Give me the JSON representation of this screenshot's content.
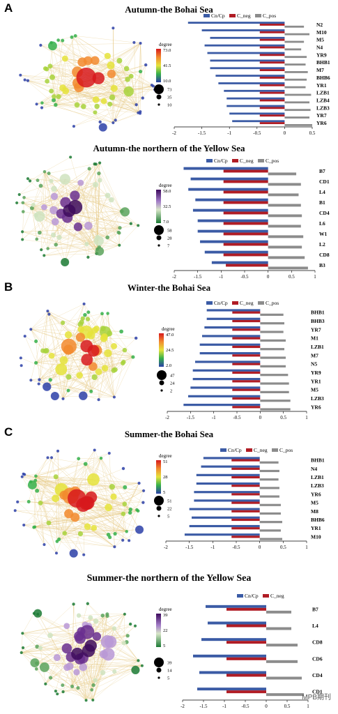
{
  "panel_letters": [
    "A",
    "B",
    "C"
  ],
  "sections": [
    {
      "title": "Autumn-the Bohai Sea",
      "degree_label": "degree",
      "color_ticks": [
        "73.0",
        "41.5",
        "10.0"
      ],
      "size_ticks": [
        "73",
        "35",
        "10"
      ],
      "gradient": "rainbow"
    },
    {
      "title": "Autumn-the northern of the Yellow Sea",
      "degree_label": "degree",
      "color_ticks": [
        "58.0",
        "32.5",
        "7.0"
      ],
      "size_ticks": [
        "58",
        "28",
        "7"
      ],
      "gradient": "purplegreen"
    },
    {
      "title": "Winter-the Bohai Sea",
      "degree_label": "degree",
      "color_ticks": [
        "47.0",
        "24.5",
        "2.0"
      ],
      "size_ticks": [
        "47",
        "24",
        "2"
      ],
      "gradient": "rainbow"
    },
    {
      "title": "Summer-the Bohai Sea",
      "degree_label": "degree",
      "color_ticks": [
        "51",
        "28",
        "5"
      ],
      "size_ticks": [
        "51",
        "22",
        "5"
      ],
      "gradient": "rainbow"
    },
    {
      "title": "Summer-the northern of the Yellow Sea",
      "degree_label": "degree",
      "color_ticks": [
        "39",
        "22",
        "5"
      ],
      "size_ticks": [
        "39",
        "14",
        "5"
      ],
      "gradient": "purplegreen"
    }
  ],
  "watermark": "MPB期刊",
  "colors": {
    "cn_cp": "#3b5ba5",
    "c_neg": "#b01c24",
    "c_pos": "#8c8c8c",
    "edge": "#e8cc8a"
  },
  "chart_data": [
    {
      "type": "bar",
      "orientation": "horizontal",
      "legend": [
        "Cn/Cp",
        "C_neg",
        "C_pos"
      ],
      "categories": [
        "N2",
        "M10",
        "M5",
        "N4",
        "YR9",
        "BHB1",
        "M7",
        "BHB6",
        "YR1",
        "LZB1",
        "LZB4",
        "LZB3",
        "YR7",
        "YR6"
      ],
      "series": [
        {
          "name": "Cn/Cp",
          "values": [
            -1.75,
            -1.5,
            -1.35,
            -1.45,
            -1.4,
            -1.35,
            -1.35,
            -1.25,
            -1.2,
            -1.1,
            -1.05,
            -1.05,
            -1.0,
            -0.95
          ]
        },
        {
          "name": "C_neg",
          "values": [
            -0.45,
            -0.45,
            -0.45,
            -0.45,
            -0.45,
            -0.45,
            -0.45,
            -0.45,
            -0.45,
            -0.45,
            -0.45,
            -0.45,
            -0.45,
            -0.45
          ]
        },
        {
          "name": "C_pos",
          "values": [
            0.35,
            0.45,
            0.35,
            0.3,
            0.4,
            0.38,
            0.42,
            0.4,
            0.38,
            0.48,
            0.45,
            0.47,
            0.45,
            0.5
          ]
        }
      ],
      "xlim": [
        -2,
        0.5
      ],
      "xticks": [
        "-2",
        "-1.5",
        "-1",
        "-0.5",
        "0",
        "0.5"
      ]
    },
    {
      "type": "bar",
      "orientation": "horizontal",
      "legend": [
        "Cn/Cp",
        "C_neg",
        "C_pos"
      ],
      "categories": [
        "B7",
        "CD1",
        "L4",
        "B1",
        "CD4",
        "L6",
        "W1",
        "L2",
        "CD8",
        "B3"
      ],
      "series": [
        {
          "name": "Cn/Cp",
          "values": [
            -1.8,
            -1.65,
            -1.7,
            -1.55,
            -1.6,
            -1.5,
            -1.5,
            -1.45,
            -1.35,
            -1.2
          ]
        },
        {
          "name": "C_neg",
          "values": [
            -0.95,
            -0.95,
            -0.95,
            -0.95,
            -0.95,
            -0.95,
            -0.95,
            -0.95,
            -0.95,
            -0.9
          ]
        },
        {
          "name": "C_pos",
          "values": [
            0.6,
            0.7,
            0.65,
            0.7,
            0.72,
            0.7,
            0.75,
            0.72,
            0.78,
            0.85
          ]
        }
      ],
      "xlim": [
        -2,
        1
      ],
      "xticks": [
        "-2",
        "-1.5",
        "-1",
        "-0.5",
        "0",
        "0.5",
        "1"
      ]
    },
    {
      "type": "bar",
      "orientation": "horizontal",
      "legend": [
        "Cn/Cp",
        "C_neg",
        "C_pos"
      ],
      "categories": [
        "BHB1",
        "BHB3",
        "YR7",
        "M1",
        "LZB1",
        "M7",
        "N5",
        "YR9",
        "YR1",
        "M5",
        "LZB3",
        "YR6"
      ],
      "series": [
        {
          "name": "Cn/Cp",
          "values": [
            -1.15,
            -1.15,
            -1.2,
            -1.25,
            -1.3,
            -1.3,
            -1.4,
            -1.45,
            -1.45,
            -1.5,
            -1.55,
            -1.65
          ]
        },
        {
          "name": "C_neg",
          "values": [
            -0.6,
            -0.6,
            -0.6,
            -0.6,
            -0.6,
            -0.6,
            -0.6,
            -0.6,
            -0.6,
            -0.6,
            -0.6,
            -0.6
          ]
        },
        {
          "name": "C_pos",
          "values": [
            0.5,
            0.52,
            0.5,
            0.55,
            0.52,
            0.55,
            0.55,
            0.6,
            0.62,
            0.62,
            0.65,
            0.65
          ]
        }
      ],
      "xlim": [
        -2,
        1
      ],
      "xticks": [
        "-2",
        "-1.5",
        "-1",
        "-0.5",
        "0",
        "0.5",
        "1"
      ]
    },
    {
      "type": "bar",
      "orientation": "horizontal",
      "legend": [
        "Cn/Cp",
        "C_neg",
        "C_pos"
      ],
      "categories": [
        "BHB1",
        "N4",
        "LZB1",
        "LZB3",
        "YR6",
        "M5",
        "M8",
        "BHB6",
        "YR1",
        "M10"
      ],
      "series": [
        {
          "name": "Cn/Cp",
          "values": [
            -1.2,
            -1.25,
            -1.35,
            -1.35,
            -1.4,
            -1.4,
            -1.5,
            -1.45,
            -1.5,
            -1.6
          ]
        },
        {
          "name": "C_neg",
          "values": [
            -0.6,
            -0.6,
            -0.6,
            -0.6,
            -0.6,
            -0.6,
            -0.6,
            -0.6,
            -0.6,
            -0.6
          ]
        },
        {
          "name": "C_pos",
          "values": [
            0.4,
            0.42,
            0.4,
            0.42,
            0.42,
            0.45,
            0.45,
            0.48,
            0.45,
            0.48
          ]
        }
      ],
      "xlim": [
        -2,
        1
      ],
      "xticks": [
        "-2",
        "-1.5",
        "-1",
        "-0.5",
        "0",
        "0.5",
        "1"
      ]
    },
    {
      "type": "bar",
      "orientation": "horizontal",
      "legend": [
        "Cn/Cp",
        "C_neg"
      ],
      "categories": [
        "B7",
        "L4",
        "CD8",
        "CD6",
        "CD4",
        "CD1"
      ],
      "series": [
        {
          "name": "Cn/Cp",
          "values": [
            -1.45,
            -1.4,
            -1.55,
            -1.75,
            -1.6,
            -1.65
          ]
        },
        {
          "name": "C_neg",
          "values": [
            -0.95,
            -0.95,
            -0.95,
            -0.95,
            -0.95,
            -0.95
          ]
        },
        {
          "name": "C_pos",
          "values": [
            0.6,
            0.6,
            0.75,
            0.75,
            0.85,
            0.9
          ]
        }
      ],
      "xlim": [
        -2,
        1
      ],
      "xticks": [
        "-2",
        "-1.5",
        "-1",
        "-0.5",
        "0",
        "0.5",
        "1"
      ]
    }
  ]
}
